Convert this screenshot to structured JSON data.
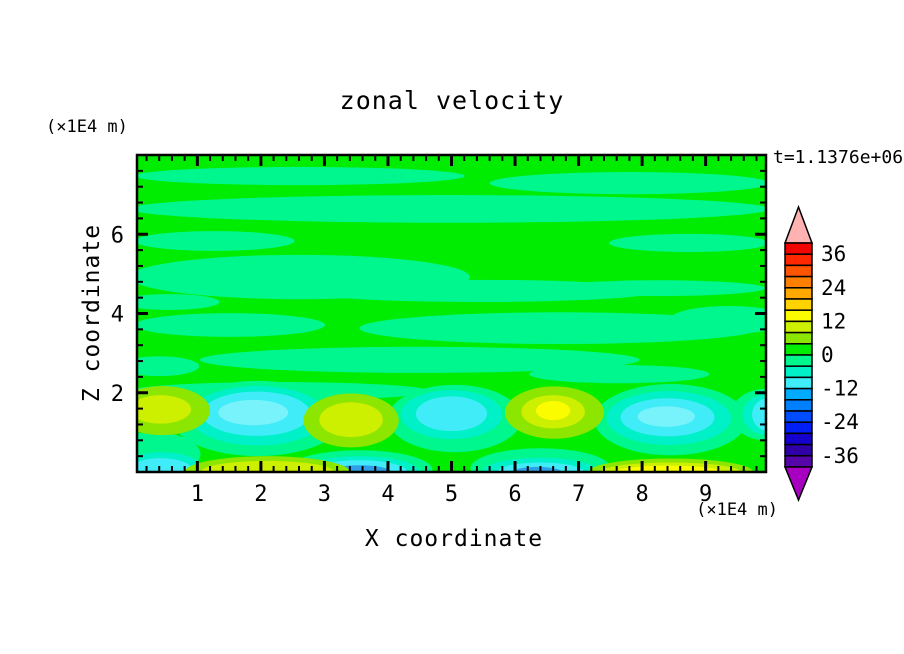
{
  "title": "zonal velocity",
  "time_label": "t=1.1376e+06",
  "left_axis_unit": "(×1E4 m)",
  "bottom_right_unit": "(×1E4 m)",
  "x_axis": {
    "label": "X coordinate",
    "min": 0.05,
    "max": 9.95,
    "major_ticks": [
      1,
      2,
      3,
      4,
      5,
      6,
      7,
      8,
      9
    ],
    "major_tick_labels": [
      "1",
      "2",
      "3",
      "4",
      "5",
      "6",
      "7",
      "8",
      "9"
    ],
    "minor_step": 0.2
  },
  "z_axis": {
    "label": "Z coordinate",
    "min": 0,
    "max": 8,
    "major_ticks": [
      2,
      4,
      6
    ],
    "major_tick_labels": [
      "2",
      "4",
      "6"
    ],
    "minor_step": 0.4
  },
  "colorbar": {
    "labels": [
      "36",
      "24",
      "12",
      "0",
      "-12",
      "-24",
      "-36"
    ],
    "level_max": 40,
    "level_min": -40,
    "level_step": 4,
    "colors_top_to_bottom": [
      "#f20400",
      "#ff2800",
      "#ff5400",
      "#ff7f00",
      "#ffa900",
      "#ffd300",
      "#fcfc00",
      "#cdef00",
      "#8ce600",
      "#00ec00",
      "#00f78d",
      "#00f0c8",
      "#3fecf8",
      "#00aaff",
      "#0080ff",
      "#004cff",
      "#001ff4",
      "#1500cd",
      "#2e00a5",
      "#5505a8"
    ],
    "over_color": "#ffb2b2",
    "under_color": "#a800c0"
  },
  "chart_data": {
    "type": "heatmap",
    "title": "zonal velocity",
    "xlabel": "X coordinate (×1E4 m)",
    "ylabel": "Z coordinate (×1E4 m)",
    "time_annotation": "t=1.1376e+06",
    "x_range": [
      0.05,
      9.95
    ],
    "z_range": [
      0,
      8
    ],
    "contour_levels": {
      "min": -40,
      "max": 40,
      "step": 4
    },
    "background_value_band": [
      0,
      4
    ],
    "background_color": "#00ec00",
    "streak_band": [
      -4,
      0
    ],
    "streak_color": "#00f78d",
    "description": "Filled-contour zonal velocity: near-zero green field with alternating 0..4 / -4..0 horizontal streaks aloft; below z=2 a row of alternating positive (yellow-green, +4..+16) and negative (cyan, -4..-12) cells; stronger extremes (down to -20 and up to +16) along the bottom boundary.",
    "streaks": [
      {
        "x": 2.61,
        "z": 7.47,
        "rx": 2.6,
        "rz": 0.23
      },
      {
        "x": 7.8,
        "z": 7.29,
        "rx": 2.2,
        "rz": 0.28
      },
      {
        "x": 4.97,
        "z": 6.64,
        "rx": 5.04,
        "rz": 0.35
      },
      {
        "x": 1.27,
        "z": 5.83,
        "rx": 1.26,
        "rz": 0.25
      },
      {
        "x": 8.74,
        "z": 5.78,
        "rx": 1.26,
        "rz": 0.23
      },
      {
        "x": 2.61,
        "z": 4.92,
        "rx": 2.68,
        "rz": 0.56
      },
      {
        "x": 5.44,
        "z": 4.57,
        "rx": 2.83,
        "rz": 0.28
      },
      {
        "x": 8.27,
        "z": 4.64,
        "rx": 1.67,
        "rz": 0.2
      },
      {
        "x": 1.51,
        "z": 3.71,
        "rx": 1.5,
        "rz": 0.3
      },
      {
        "x": 6.7,
        "z": 3.63,
        "rx": 3.15,
        "rz": 0.4
      },
      {
        "x": 4.5,
        "z": 2.83,
        "rx": 3.46,
        "rz": 0.33
      },
      {
        "x": 0.4,
        "z": 2.67,
        "rx": 0.63,
        "rz": 0.25
      },
      {
        "x": 7.64,
        "z": 2.47,
        "rx": 1.42,
        "rz": 0.23
      },
      {
        "x": 2.29,
        "z": 2.04,
        "rx": 2.36,
        "rz": 0.23
      },
      {
        "x": 9.37,
        "z": 3.84,
        "rx": 0.94,
        "rz": 0.35
      },
      {
        "x": 0.56,
        "z": 4.29,
        "rx": 0.79,
        "rz": 0.2
      }
    ],
    "blobs": [
      {
        "x": 1.95,
        "z": 1.35,
        "rx": 1.35,
        "rz": 0.95,
        "band": [
          -4,
          0
        ],
        "c": "#00f78d"
      },
      {
        "x": 5.05,
        "z": 1.35,
        "rx": 1.05,
        "rz": 0.85,
        "band": [
          -4,
          0
        ],
        "c": "#00f78d"
      },
      {
        "x": 8.45,
        "z": 1.32,
        "rx": 1.2,
        "rz": 0.9,
        "band": [
          -4,
          0
        ],
        "c": "#00f78d"
      },
      {
        "x": 9.95,
        "z": 1.45,
        "rx": 0.55,
        "rz": 0.65,
        "band": [
          -4,
          0
        ],
        "c": "#00f78d"
      },
      {
        "x": 0.3,
        "z": 0.45,
        "rx": 0.75,
        "rz": 0.55,
        "band": [
          -4,
          0
        ],
        "c": "#00f78d"
      },
      {
        "x": 6.4,
        "z": 0.1,
        "rx": 1.1,
        "rz": 0.5,
        "band": [
          -4,
          0
        ],
        "c": "#00f78d"
      },
      {
        "x": 3.55,
        "z": 0.05,
        "rx": 1.15,
        "rz": 0.5,
        "band": [
          -4,
          0
        ],
        "c": "#00f78d"
      },
      {
        "x": 1.95,
        "z": 1.42,
        "rx": 1.08,
        "rz": 0.75,
        "band": [
          -8,
          -4
        ],
        "c": "#00f0c8"
      },
      {
        "x": 5.0,
        "z": 1.45,
        "rx": 0.8,
        "rz": 0.62,
        "band": [
          -8,
          -4
        ],
        "c": "#00f0c8"
      },
      {
        "x": 8.42,
        "z": 1.36,
        "rx": 0.98,
        "rz": 0.68,
        "band": [
          -8,
          -4
        ],
        "c": "#00f0c8"
      },
      {
        "x": 9.98,
        "z": 1.45,
        "rx": 0.4,
        "rz": 0.52,
        "band": [
          -8,
          -4
        ],
        "c": "#00f0c8"
      },
      {
        "x": 0.45,
        "z": 0.1,
        "rx": 0.62,
        "rz": 0.4,
        "band": [
          -8,
          -4
        ],
        "c": "#00f0c8"
      },
      {
        "x": 6.4,
        "z": 0.02,
        "rx": 0.9,
        "rz": 0.34,
        "band": [
          -8,
          -4
        ],
        "c": "#00f0c8"
      },
      {
        "x": 3.55,
        "z": 0.0,
        "rx": 0.95,
        "rz": 0.4,
        "band": [
          -8,
          -4
        ],
        "c": "#00f0c8"
      },
      {
        "x": 1.93,
        "z": 1.47,
        "rx": 0.85,
        "rz": 0.56,
        "band": [
          -12,
          -8
        ],
        "c": "#3fecf8"
      },
      {
        "x": 5.0,
        "z": 1.47,
        "rx": 0.56,
        "rz": 0.44,
        "band": [
          -12,
          -8
        ],
        "c": "#3fecf8"
      },
      {
        "x": 8.4,
        "z": 1.38,
        "rx": 0.74,
        "rz": 0.48,
        "band": [
          -12,
          -8
        ],
        "c": "#3fecf8"
      },
      {
        "x": 10.0,
        "z": 1.45,
        "rx": 0.27,
        "rz": 0.42,
        "band": [
          -12,
          -8
        ],
        "c": "#3fecf8"
      },
      {
        "x": 0.42,
        "z": 0.05,
        "rx": 0.5,
        "rz": 0.3,
        "band": [
          -12,
          -8
        ],
        "c": "#3fecf8"
      },
      {
        "x": 6.4,
        "z": 0.0,
        "rx": 0.68,
        "rz": 0.24,
        "band": [
          -12,
          -8
        ],
        "c": "#3fecf8"
      },
      {
        "x": 3.55,
        "z": 0.0,
        "rx": 0.75,
        "rz": 0.3,
        "band": [
          -12,
          -8
        ],
        "c": "#3fecf8"
      },
      {
        "x": 1.88,
        "z": 1.5,
        "rx": 0.55,
        "rz": 0.32,
        "band": [
          -12,
          -8
        ],
        "c": "#78f3fc"
      },
      {
        "x": 8.38,
        "z": 1.4,
        "rx": 0.45,
        "rz": 0.26,
        "band": [
          -12,
          -8
        ],
        "c": "#78f3fc"
      },
      {
        "x": 3.55,
        "z": 0.0,
        "rx": 0.5,
        "rz": 0.17,
        "band": [
          -20,
          -12
        ],
        "c": "#2f9fe8"
      },
      {
        "x": 6.35,
        "z": 0.0,
        "rx": 0.38,
        "rz": 0.13,
        "band": [
          -20,
          -12
        ],
        "c": "#2f9fe8"
      },
      {
        "x": 0.45,
        "z": 1.55,
        "rx": 0.75,
        "rz": 0.62,
        "band": [
          4,
          8
        ],
        "c": "#8ce600"
      },
      {
        "x": 3.42,
        "z": 1.3,
        "rx": 0.75,
        "rz": 0.68,
        "band": [
          4,
          8
        ],
        "c": "#8ce600"
      },
      {
        "x": 6.62,
        "z": 1.5,
        "rx": 0.78,
        "rz": 0.66,
        "band": [
          4,
          8
        ],
        "c": "#8ce600"
      },
      {
        "x": 2.1,
        "z": 0.0,
        "rx": 1.3,
        "rz": 0.4,
        "band": [
          4,
          8
        ],
        "c": "#8ce600"
      },
      {
        "x": 8.45,
        "z": 0.0,
        "rx": 1.3,
        "rz": 0.34,
        "band": [
          4,
          8
        ],
        "c": "#8ce600"
      },
      {
        "x": 0.42,
        "z": 1.58,
        "rx": 0.48,
        "rz": 0.36,
        "band": [
          8,
          12
        ],
        "c": "#cdef00"
      },
      {
        "x": 3.42,
        "z": 1.32,
        "rx": 0.5,
        "rz": 0.44,
        "band": [
          8,
          12
        ],
        "c": "#cdef00"
      },
      {
        "x": 6.6,
        "z": 1.52,
        "rx": 0.5,
        "rz": 0.42,
        "band": [
          8,
          12
        ],
        "c": "#cdef00"
      },
      {
        "x": 2.1,
        "z": 0.0,
        "rx": 1.05,
        "rz": 0.28,
        "band": [
          8,
          12
        ],
        "c": "#cdef00"
      },
      {
        "x": 8.45,
        "z": 0.0,
        "rx": 1.1,
        "rz": 0.24,
        "band": [
          8,
          12
        ],
        "c": "#cdef00"
      },
      {
        "x": 6.6,
        "z": 1.55,
        "rx": 0.27,
        "rz": 0.24,
        "band": [
          12,
          16
        ],
        "c": "#fcfc00"
      },
      {
        "x": 8.42,
        "z": 0.0,
        "rx": 0.85,
        "rz": 0.16,
        "band": [
          12,
          16
        ],
        "c": "#fcfc00"
      }
    ]
  }
}
